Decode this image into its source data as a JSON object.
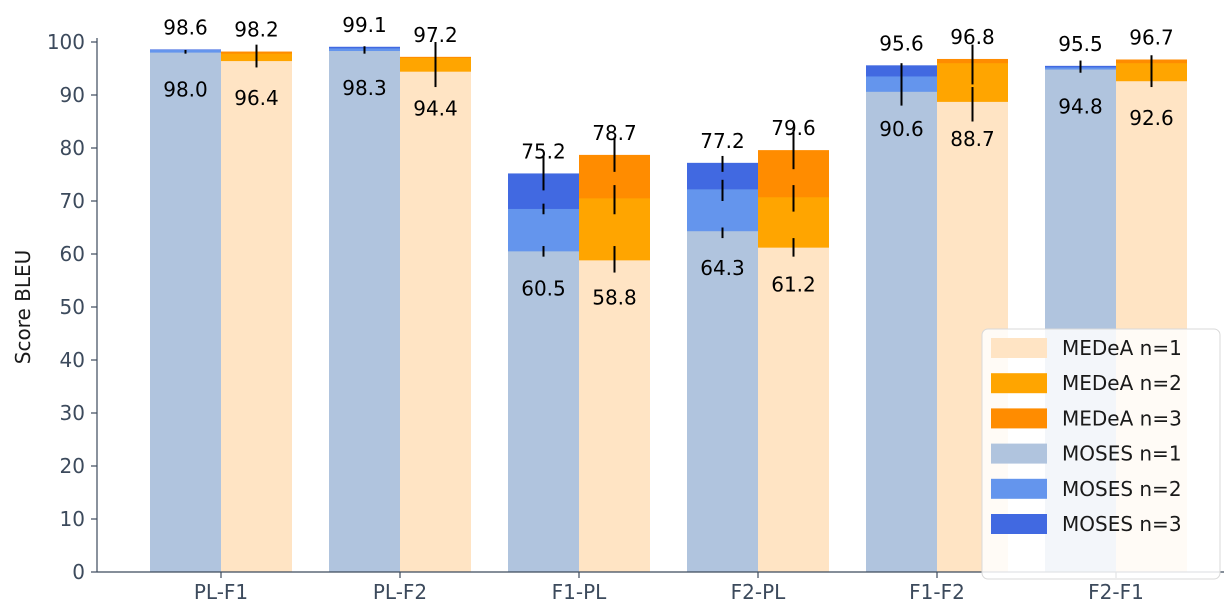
{
  "chart_data": {
    "type": "bar",
    "categories": [
      "PL-F1",
      "PL-F2",
      "F1-PL",
      "F2-PL",
      "F1-F2",
      "F2-F1"
    ],
    "ylabel": "Score BLEU",
    "xlabel": "",
    "ylim": [
      0,
      100
    ],
    "yticks": [
      0,
      10,
      20,
      30,
      40,
      50,
      60,
      70,
      80,
      90,
      100
    ],
    "series": [
      {
        "name": "MOSES n=1",
        "group": "MOSES",
        "values": [
          98.0,
          98.3,
          60.5,
          64.3,
          90.6,
          94.8
        ],
        "color": "#b0c4de"
      },
      {
        "name": "MOSES n=2",
        "group": "MOSES",
        "values": [
          98.5,
          98.8,
          68.5,
          72.2,
          93.5,
          95.2
        ],
        "color": "#6495ed"
      },
      {
        "name": "MOSES n=3",
        "group": "MOSES",
        "values": [
          98.6,
          99.1,
          75.2,
          77.2,
          95.6,
          95.5
        ],
        "color": "#4169e1"
      },
      {
        "name": "MEDeA n=1",
        "group": "MEDeA",
        "values": [
          96.4,
          94.4,
          58.8,
          61.2,
          88.7,
          92.6
        ],
        "color": "#ffe4c4"
      },
      {
        "name": "MEDeA n=2",
        "group": "MEDeA",
        "values": [
          97.8,
          97.0,
          70.5,
          70.7,
          96.0,
          96.0
        ],
        "color": "#ffa500"
      },
      {
        "name": "MEDeA n=3",
        "group": "MEDeA",
        "values": [
          98.2,
          97.2,
          78.7,
          79.6,
          96.8,
          96.7
        ],
        "color": "#ff8c00"
      }
    ],
    "bottom_labels": {
      "MOSES": [
        "98.0",
        "98.3",
        "60.5",
        "64.3",
        "90.6",
        "94.8"
      ],
      "MEDeA": [
        "96.4",
        "94.4",
        "58.8",
        "61.2",
        "88.7",
        "92.6"
      ]
    },
    "top_labels": {
      "MOSES": [
        "98.6",
        "99.1",
        "75.2",
        "77.2",
        "95.6",
        "95.5"
      ],
      "MEDeA": [
        "98.2",
        "97.2",
        "78.7",
        "79.6",
        "96.8",
        "96.7"
      ]
    },
    "error_bars": {
      "MOSES": [
        [
          [
            97.8,
            98.5
          ]
        ],
        [
          [
            97.8,
            99.2
          ]
        ],
        [
          [
            59.5,
            61.5
          ],
          [
            67.5,
            69.5
          ],
          [
            72.0,
            78.7
          ]
        ],
        [
          [
            63.0,
            65.0
          ],
          [
            70.0,
            74.0
          ],
          [
            75.5,
            78.5
          ]
        ],
        [
          [
            88.0,
            95.5
          ],
          [
            94.0,
            96.0
          ]
        ],
        [
          [
            94.2,
            96.5
          ]
        ]
      ],
      "MEDeA": [
        [
          [
            95.2,
            99.5
          ]
        ],
        [
          [
            91.5,
            100.0
          ]
        ],
        [
          [
            56.5,
            61.5
          ],
          [
            67.5,
            73.0
          ],
          [
            75.5,
            82.0
          ]
        ],
        [
          [
            59.5,
            63.0
          ],
          [
            68.0,
            73.0
          ],
          [
            76.0,
            83.5
          ]
        ],
        [
          [
            85.0,
            91.5
          ],
          [
            92.0,
            99.5
          ]
        ],
        [
          [
            91.5,
            97.5
          ]
        ]
      ]
    },
    "legend": {
      "placement": "lower-right",
      "entries": [
        "MEDeA n=1",
        "MEDeA n=2",
        "MEDeA n=3",
        "MOSES n=1",
        "MOSES n=2",
        "MOSES n=3"
      ]
    },
    "grid": false
  }
}
